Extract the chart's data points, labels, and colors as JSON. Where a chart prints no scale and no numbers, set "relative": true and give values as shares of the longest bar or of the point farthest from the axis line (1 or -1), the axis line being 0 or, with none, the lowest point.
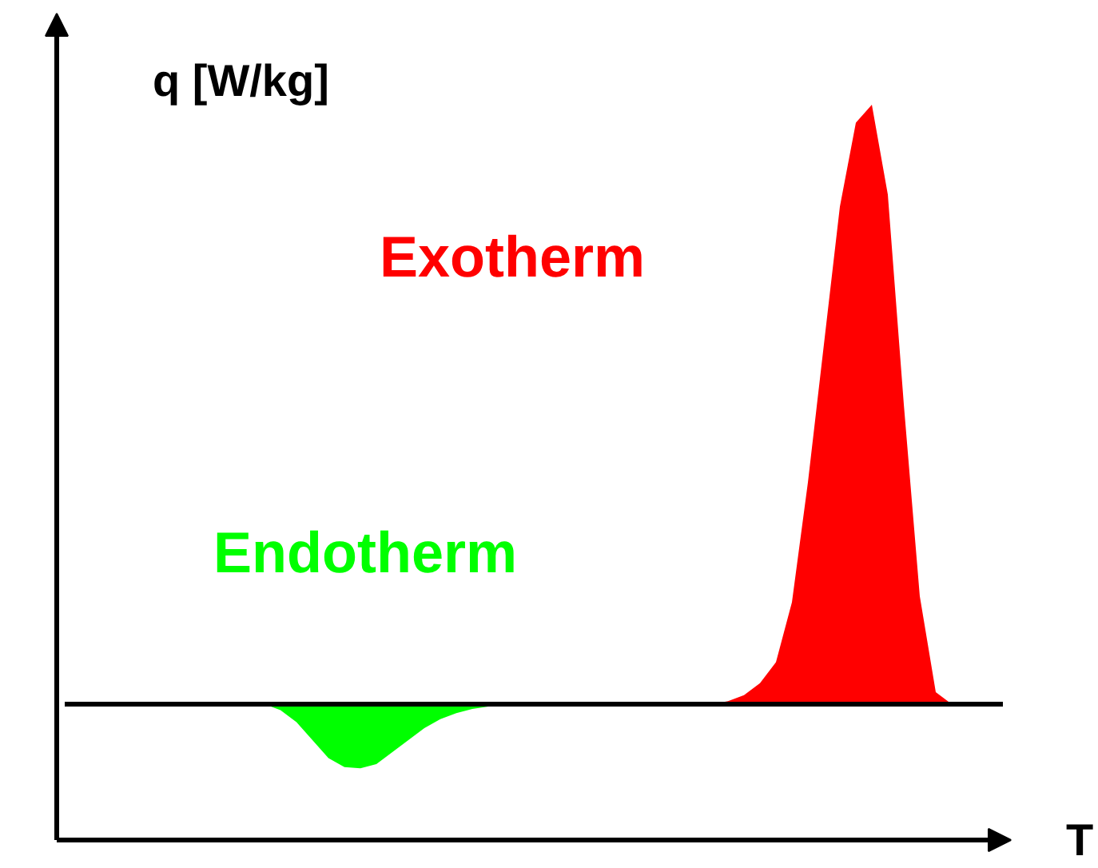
{
  "chart_data": {
    "type": "area",
    "relative": true,
    "xlabel": "T",
    "ylabel": "q [W/kg]",
    "legend": false,
    "grid": false,
    "categories": [
      null,
      null,
      null,
      null,
      null,
      null,
      null,
      null,
      null,
      null,
      null,
      null,
      null,
      null,
      null,
      null,
      null,
      null,
      null,
      null,
      null,
      null,
      null,
      null,
      null,
      null,
      null,
      null,
      null,
      null,
      null,
      null,
      null,
      null,
      null,
      null,
      null,
      null,
      null,
      null,
      null,
      null,
      null,
      null,
      null,
      null,
      null,
      null,
      null,
      null,
      null,
      null,
      null,
      null,
      null,
      null,
      null,
      null,
      null
    ],
    "series": [
      {
        "name": "Exotherm",
        "color": "#ff0000",
        "values": [
          0,
          0,
          0,
          0,
          0,
          0,
          0,
          0,
          0,
          0,
          0,
          0,
          0,
          0,
          0,
          0,
          0,
          0,
          0,
          0,
          0,
          0,
          0,
          0,
          0,
          0,
          0,
          0,
          0,
          0,
          0,
          0,
          0,
          0,
          0,
          0,
          0,
          0,
          0,
          0,
          0,
          0.005,
          0.015,
          0.035,
          0.07,
          0.17,
          0.37,
          0.6,
          0.83,
          0.97,
          1.0,
          0.85,
          0.5,
          0.18,
          0.02,
          0,
          0,
          0,
          0
        ]
      },
      {
        "name": "Endotherm",
        "color": "#00ff00",
        "values": [
          0,
          0,
          0,
          0,
          0,
          0,
          0,
          0,
          0,
          0,
          0,
          0,
          0,
          -0.01,
          -0.03,
          -0.06,
          -0.09,
          -0.105,
          -0.107,
          -0.1,
          -0.08,
          -0.06,
          -0.04,
          -0.025,
          -0.015,
          -0.008,
          -0.004,
          -0.002,
          0,
          0,
          0,
          0,
          0,
          0,
          0,
          0,
          0,
          0,
          0,
          0,
          0,
          0,
          0,
          0,
          0,
          0,
          0,
          0,
          0,
          0,
          0,
          0,
          0,
          0,
          0,
          0,
          0,
          0,
          0
        ]
      }
    ],
    "ref_lines": [
      {
        "axis": "y",
        "value": 0,
        "color": "#000000"
      }
    ]
  }
}
